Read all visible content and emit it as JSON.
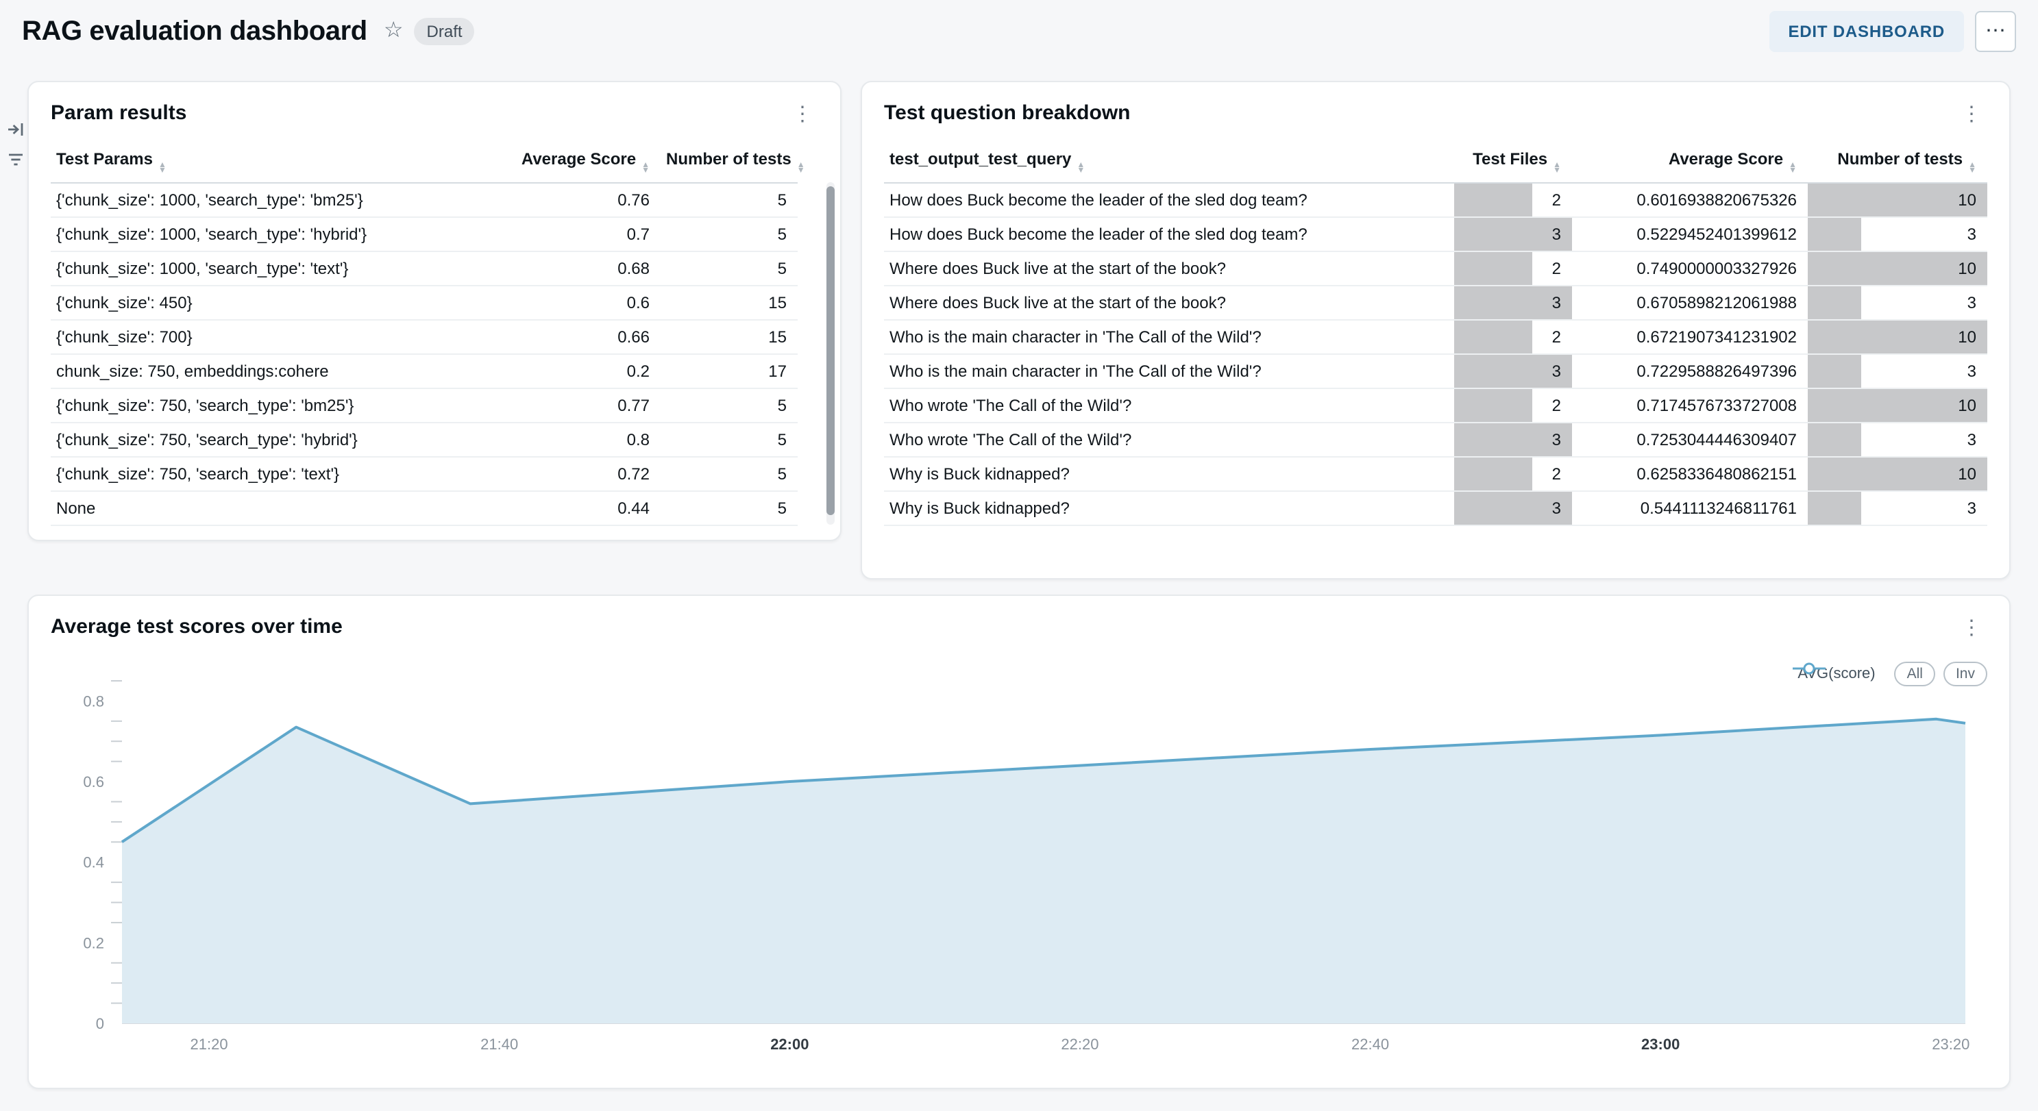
{
  "header": {
    "title": "RAG evaluation dashboard",
    "status_badge": "Draft",
    "edit_button_label": "EDIT DASHBOARD"
  },
  "icons": {
    "favorite_star": "☆",
    "more_horizontal": "⋯",
    "kebab_vertical": "⋮"
  },
  "cards": {
    "param_results": {
      "title": "Param results",
      "columns": [
        {
          "label": "Test Params",
          "align": "left"
        },
        {
          "label": "Average Score",
          "align": "right"
        },
        {
          "label": "Number of tests",
          "align": "right"
        }
      ],
      "rows": [
        [
          "{'chunk_size': 1000, 'search_type': 'bm25'}",
          "0.76",
          "5"
        ],
        [
          "{'chunk_size': 1000, 'search_type': 'hybrid'}",
          "0.7",
          "5"
        ],
        [
          "{'chunk_size': 1000, 'search_type': 'text'}",
          "0.68",
          "5"
        ],
        [
          "{'chunk_size': 450}",
          "0.6",
          "15"
        ],
        [
          "{'chunk_size': 700}",
          "0.66",
          "15"
        ],
        [
          "chunk_size: 750, embeddings:cohere",
          "0.2",
          "17"
        ],
        [
          "{'chunk_size': 750, 'search_type': 'bm25'}",
          "0.77",
          "5"
        ],
        [
          "{'chunk_size': 750, 'search_type': 'hybrid'}",
          "0.8",
          "5"
        ],
        [
          "{'chunk_size': 750, 'search_type': 'text'}",
          "0.72",
          "5"
        ],
        [
          "None",
          "0.44",
          "5"
        ]
      ]
    },
    "question_breakdown": {
      "title": "Test question breakdown",
      "columns": [
        {
          "label": "test_output_test_query",
          "align": "left"
        },
        {
          "label": "Test Files",
          "align": "right"
        },
        {
          "label": "Average Score",
          "align": "right"
        },
        {
          "label": "Number of tests",
          "align": "right"
        }
      ],
      "bar_max": {
        "test_files": 3,
        "num_tests": 10
      },
      "bar_color": "#c7c8ca",
      "rows": [
        {
          "query": "How does Buck become the leader of the sled dog team?",
          "test_files": 2,
          "avg_score": "0.6016938820675326",
          "num_tests": 10
        },
        {
          "query": "How does Buck become the leader of the sled dog team?",
          "test_files": 3,
          "avg_score": "0.5229452401399612",
          "num_tests": 3
        },
        {
          "query": "Where does Buck live at the start of the book?",
          "test_files": 2,
          "avg_score": "0.7490000003327926",
          "num_tests": 10
        },
        {
          "query": "Where does Buck live at the start of the book?",
          "test_files": 3,
          "avg_score": "0.6705898212061988",
          "num_tests": 3
        },
        {
          "query": "Who is the main character in 'The Call of the Wild'?",
          "test_files": 2,
          "avg_score": "0.6721907341231902",
          "num_tests": 10
        },
        {
          "query": "Who is the main character in 'The Call of the Wild'?",
          "test_files": 3,
          "avg_score": "0.7229588826497396",
          "num_tests": 3
        },
        {
          "query": "Who wrote 'The Call of the Wild'?",
          "test_files": 2,
          "avg_score": "0.7174576733727008",
          "num_tests": 10
        },
        {
          "query": "Who wrote 'The Call of the Wild'?",
          "test_files": 3,
          "avg_score": "0.7253044446309407",
          "num_tests": 3
        },
        {
          "query": "Why is Buck kidnapped?",
          "test_files": 2,
          "avg_score": "0.6258336480862151",
          "num_tests": 10
        },
        {
          "query": "Why is Buck kidnapped?",
          "test_files": 3,
          "avg_score": "0.5441113246811761",
          "num_tests": 3
        }
      ]
    },
    "scores_chart": {
      "title": "Average test scores over time",
      "legend": {
        "series_label": "AVG(score)",
        "select_all": "All",
        "select_inverse": "Inv"
      },
      "chart_data": {
        "type": "area",
        "title": "Average test scores over time",
        "xlabel": "",
        "ylabel": "",
        "x_domain": [
          "21:14",
          "23:21"
        ],
        "x_ticks": [
          "21:20",
          "21:40",
          "22:00",
          "22:20",
          "22:40",
          "23:00",
          "23:20"
        ],
        "x_ticks_bold": [
          "22:00",
          "23:00"
        ],
        "y_ticks": [
          0,
          0.2,
          0.4,
          0.6,
          0.8
        ],
        "y_minor_step": 0.05,
        "ylim": [
          0,
          0.85
        ],
        "grid": false,
        "legend_position": "top-right",
        "line_color": "#5fa7cb",
        "fill_color": "#ddebf3",
        "series": [
          {
            "name": "AVG(score)",
            "points": [
              [
                "21:14",
                0.45
              ],
              [
                "21:26",
                0.735
              ],
              [
                "21:38",
                0.545
              ],
              [
                "22:00",
                0.6
              ],
              [
                "22:20",
                0.64
              ],
              [
                "22:40",
                0.68
              ],
              [
                "23:00",
                0.715
              ],
              [
                "23:19",
                0.755
              ],
              [
                "23:21",
                0.745
              ]
            ]
          }
        ]
      }
    }
  }
}
